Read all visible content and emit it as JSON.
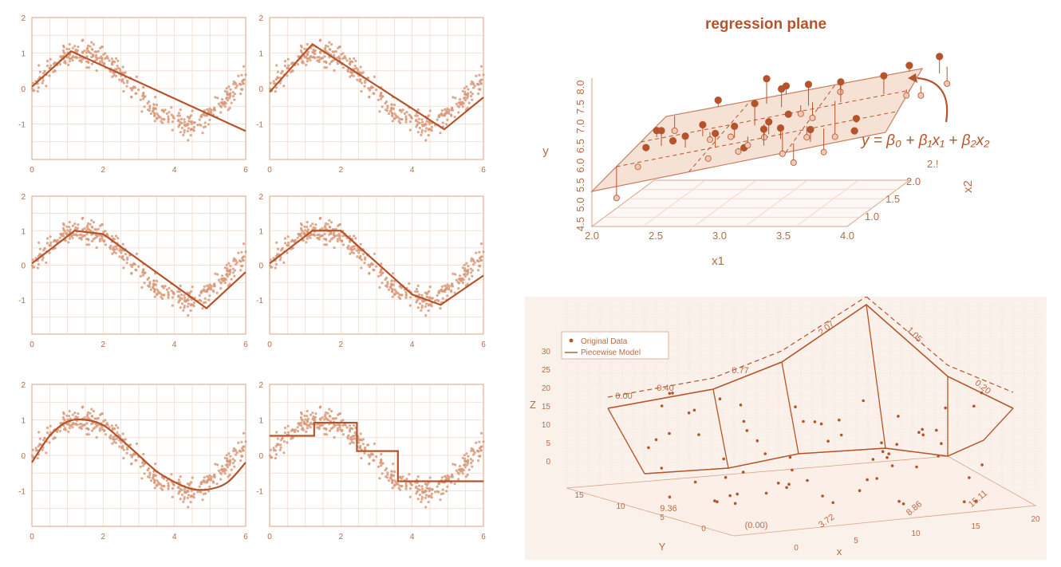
{
  "colors": {
    "accent": "#b5542b",
    "point": "#d89a7a",
    "grid": "#f1d7c8",
    "axis": "#d9a385",
    "text": "#b86b45",
    "panel_bg": "#fbf1eb"
  },
  "chart_data": [
    {
      "type": "scatter",
      "panel": "top-left",
      "subtitle": "",
      "xlim": [
        0,
        6
      ],
      "ylim": [
        -2,
        2
      ],
      "xticks": [
        "0",
        "2",
        "4",
        "6"
      ],
      "yticks": [
        "-1",
        "0",
        "1",
        "2"
      ],
      "model": "piecewise-linear",
      "knots": [
        [
          0,
          0.05
        ],
        [
          1.1,
          1.05
        ],
        [
          6,
          -1.2
        ]
      ]
    },
    {
      "type": "scatter",
      "panel": "top-right",
      "subtitle": "",
      "xlim": [
        0,
        6
      ],
      "ylim": [
        -2,
        2
      ],
      "xticks": [
        "0",
        "2",
        "4",
        "6"
      ],
      "yticks": [
        "-1",
        "0",
        "1",
        "2"
      ],
      "model": "piecewise-linear",
      "knots": [
        [
          0,
          -0.1
        ],
        [
          1.2,
          1.25
        ],
        [
          4.9,
          -1.15
        ],
        [
          6,
          -0.25
        ]
      ]
    },
    {
      "type": "scatter",
      "panel": "middle-left",
      "subtitle": "",
      "xlim": [
        0,
        6
      ],
      "ylim": [
        -2,
        2
      ],
      "xticks": [
        "0",
        "2",
        "4",
        "6"
      ],
      "yticks": [
        "-1",
        "0",
        "1",
        "2"
      ],
      "model": "piecewise-linear",
      "knots": [
        [
          0,
          0.05
        ],
        [
          1.2,
          1.0
        ],
        [
          2.0,
          0.9
        ],
        [
          4.9,
          -1.25
        ],
        [
          6,
          -0.2
        ]
      ]
    },
    {
      "type": "scatter",
      "panel": "middle-right",
      "subtitle": "",
      "xlim": [
        0,
        6
      ],
      "ylim": [
        -2,
        2
      ],
      "xticks": [
        "0",
        "2",
        "4",
        "6"
      ],
      "yticks": [
        "-1",
        "0",
        "1",
        "2"
      ],
      "model": "piecewise-linear",
      "knots": [
        [
          0,
          0.05
        ],
        [
          1.2,
          1.0
        ],
        [
          2.0,
          1.0
        ],
        [
          4.0,
          -0.85
        ],
        [
          4.8,
          -1.15
        ],
        [
          6,
          -0.3
        ]
      ]
    },
    {
      "type": "scatter",
      "panel": "bottom-left",
      "subtitle": "",
      "xlim": [
        0,
        6
      ],
      "ylim": [
        -2,
        2
      ],
      "xticks": [
        "0",
        "2",
        "4",
        "6"
      ],
      "yticks": [
        "-1",
        "0",
        "1",
        "2"
      ],
      "model": "smooth-curve",
      "knots": [
        [
          0,
          -0.2
        ],
        [
          0.5,
          0.55
        ],
        [
          1.0,
          0.95
        ],
        [
          1.5,
          1.0
        ],
        [
          2.0,
          0.85
        ],
        [
          2.5,
          0.45
        ],
        [
          3.0,
          0.0
        ],
        [
          3.5,
          -0.45
        ],
        [
          4.0,
          -0.75
        ],
        [
          4.5,
          -0.95
        ],
        [
          5.0,
          -0.95
        ],
        [
          5.5,
          -0.75
        ],
        [
          6.0,
          -0.2
        ]
      ]
    },
    {
      "type": "scatter",
      "panel": "bottom-right",
      "subtitle": "",
      "xlim": [
        0,
        6
      ],
      "ylim": [
        -2,
        2
      ],
      "xticks": [
        "0",
        "2",
        "4",
        "6"
      ],
      "yticks": [
        "-1",
        "0",
        "1",
        "2"
      ],
      "model": "step",
      "steps": [
        [
          0,
          1.25,
          0.55
        ],
        [
          1.25,
          2.45,
          0.92
        ],
        [
          2.45,
          3.6,
          0.12
        ],
        [
          3.6,
          6.0,
          -0.73
        ]
      ]
    },
    {
      "type": "scatter",
      "panel": "regression-plane",
      "title": "regression plane",
      "xlabel": "x1",
      "ylabel": "y",
      "zlabel": "x2",
      "equation": "y = β₀ + β₁x₁ + β₂x₂",
      "x1_ticks": [
        "2.0",
        "2.5",
        "3.0",
        "3.5",
        "4.0"
      ],
      "x2_ticks": [
        "1.0",
        "1.5",
        "2.0",
        "2.!"
      ],
      "y_ticks": [
        "4.5",
        "5.0",
        "5.5",
        "6.0",
        "6.5",
        "7.0",
        "7.5",
        "8.0"
      ]
    },
    {
      "type": "scatter",
      "panel": "piecewise-3d",
      "xlabel": "x",
      "ylabel": "Y",
      "zlabel": "Z",
      "legend": [
        "Original Data",
        "Piecewise Model"
      ],
      "z_ticks": [
        "30",
        "25",
        "20",
        "15",
        "10",
        "5",
        "0"
      ],
      "x_ticks": [
        "0",
        "5",
        "10",
        "15",
        "20"
      ],
      "y_ticks": [
        "15",
        "10",
        "5",
        "0"
      ],
      "annotations": [
        "0.00",
        "0.40",
        "0.77",
        "2.07",
        "1.05",
        "0.20",
        "9.36",
        "(0.00)",
        "3.72",
        "8.86",
        "15.11"
      ]
    }
  ]
}
